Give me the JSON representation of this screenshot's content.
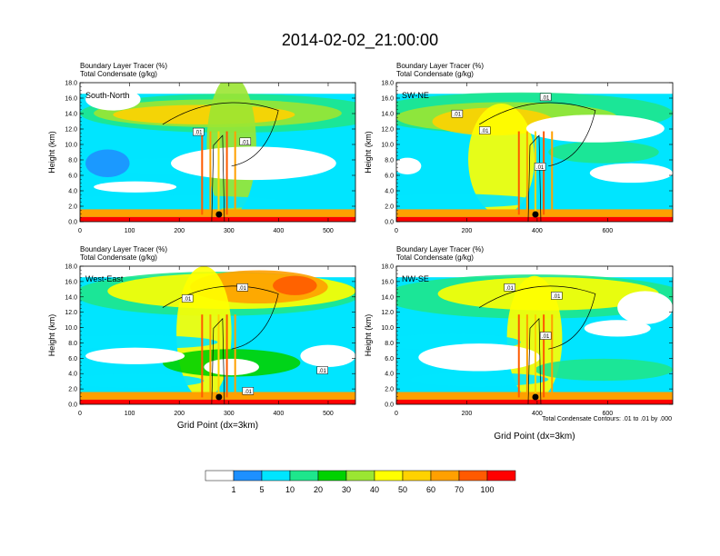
{
  "title": "2014-02-02_21:00:00",
  "colorbar": {
    "colors": [
      "#ffffff",
      "#1e90ff",
      "#00e5ff",
      "#1ee68c",
      "#00d200",
      "#9be632",
      "#ffff00",
      "#ffd200",
      "#ffa000",
      "#ff5a00",
      "#ff0000"
    ],
    "labels": [
      "1",
      "5",
      "10",
      "20",
      "30",
      "40",
      "50",
      "60",
      "70",
      "100"
    ]
  },
  "contour_note": "Total Condensate Contours: .01 to .01 by .000",
  "chart_data": [
    {
      "type": "heatmap",
      "subtitle1": "Boundary Layer Tracer   (%)",
      "subtitle2": "Total Condensate   (g/kg)",
      "panel_label": "South-North",
      "ylabel": "Height (km)",
      "xlabel": "",
      "xlim": [
        0,
        555
      ],
      "ylim": [
        0,
        18
      ],
      "xticks": [
        "0",
        "100",
        "200",
        "300",
        "400",
        "500"
      ],
      "xtick_values": [
        0,
        100,
        200,
        300,
        400,
        500
      ],
      "yticks": [
        "0.0",
        "2.0",
        "4.0",
        "6.0",
        "8.0",
        "10.0",
        "12.0",
        "14.0",
        "16.0",
        "18.0"
      ],
      "marker_x": 280,
      "contour_labels": [
        ".01",
        ".01"
      ]
    },
    {
      "type": "heatmap",
      "subtitle1": "Boundary Layer Tracer   (%)",
      "subtitle2": "Total Condensate   (g/kg)",
      "panel_label": "SW-NE",
      "ylabel": "Height (km)",
      "xlabel": "",
      "xlim": [
        0,
        785
      ],
      "ylim": [
        0,
        18
      ],
      "xticks": [
        "0",
        "200",
        "400",
        "600"
      ],
      "xtick_values": [
        0,
        200,
        400,
        600
      ],
      "yticks": [
        "0.0",
        "2.0",
        "4.0",
        "6.0",
        "8.0",
        "10.0",
        "12.0",
        "14.0",
        "16.0",
        "18.0"
      ],
      "marker_x": 395,
      "contour_labels": [
        ".01",
        ".01",
        ".01",
        ".01"
      ]
    },
    {
      "type": "heatmap",
      "subtitle1": "Boundary Layer Tracer   (%)",
      "subtitle2": "Total Condensate   (g/kg)",
      "panel_label": "West-East",
      "ylabel": "Height (km)",
      "xlabel": "Grid Point (dx=3km)",
      "xlim": [
        0,
        555
      ],
      "ylim": [
        0,
        18
      ],
      "xticks": [
        "0",
        "100",
        "200",
        "300",
        "400",
        "500"
      ],
      "xtick_values": [
        0,
        100,
        200,
        300,
        400,
        500
      ],
      "yticks": [
        "0.0",
        "2.0",
        "4.0",
        "6.0",
        "8.0",
        "10.0",
        "12.0",
        "14.0",
        "16.0",
        "18.0"
      ],
      "marker_x": 280,
      "contour_labels": [
        ".01",
        ".01",
        ".01",
        ".01"
      ]
    },
    {
      "type": "heatmap",
      "subtitle1": "Boundary Layer Tracer   (%)",
      "subtitle2": "Total Condensate   (g/kg)",
      "panel_label": "NW-SE",
      "ylabel": "Height (km)",
      "xlabel": "Grid Point (dx=3km)",
      "xlim": [
        0,
        785
      ],
      "ylim": [
        0,
        18
      ],
      "xticks": [
        "0",
        "200",
        "400",
        "600"
      ],
      "xtick_values": [
        0,
        200,
        400,
        600
      ],
      "yticks": [
        "0.0",
        "2.0",
        "4.0",
        "6.0",
        "8.0",
        "10.0",
        "12.0",
        "14.0",
        "16.0",
        "18.0"
      ],
      "marker_x": 395,
      "contour_labels": [
        ".01",
        ".01",
        ".01"
      ]
    }
  ]
}
